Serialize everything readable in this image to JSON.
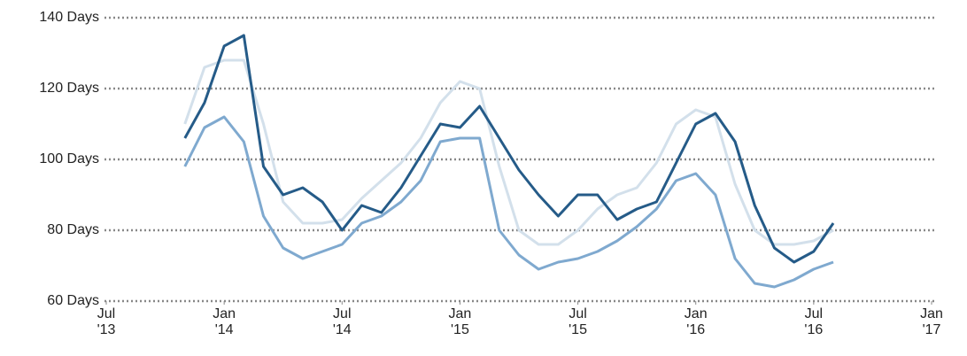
{
  "chart_data": {
    "type": "line",
    "x": [
      "2013-11",
      "2013-12",
      "2014-01",
      "2014-02",
      "2014-03",
      "2014-04",
      "2014-05",
      "2014-06",
      "2014-07",
      "2014-08",
      "2014-09",
      "2014-10",
      "2014-11",
      "2014-12",
      "2015-01",
      "2015-02",
      "2015-03",
      "2015-04",
      "2015-05",
      "2015-06",
      "2015-07",
      "2015-08",
      "2015-09",
      "2015-10",
      "2015-11",
      "2015-12",
      "2016-01",
      "2016-02",
      "2016-03",
      "2016-04",
      "2016-05",
      "2016-06",
      "2016-07",
      "2016-08"
    ],
    "series": [
      {
        "color": "#d3e0eb",
        "values": [
          110,
          126,
          128,
          128,
          110,
          88,
          82,
          82,
          83,
          89,
          94,
          99,
          106,
          116,
          122,
          120,
          98,
          80,
          76,
          76,
          80,
          86,
          90,
          92,
          99,
          110,
          114,
          112,
          93,
          80,
          76,
          76,
          77,
          80
        ]
      },
      {
        "color": "#7fa9cf",
        "values": [
          98,
          109,
          112,
          105,
          84,
          75,
          72,
          74,
          76,
          82,
          84,
          88,
          94,
          105,
          106,
          106,
          80,
          73,
          69,
          71,
          72,
          74,
          77,
          81,
          86,
          94,
          96,
          90,
          72,
          65,
          64,
          66,
          69,
          71
        ]
      },
      {
        "color": "#255b88",
        "values": [
          106,
          116,
          132,
          135,
          98,
          90,
          92,
          88,
          80,
          87,
          85,
          92,
          101,
          110,
          109,
          115,
          106,
          97,
          90,
          84,
          90,
          90,
          83,
          86,
          88,
          99,
          110,
          113,
          105,
          87,
          75,
          71,
          74,
          82
        ]
      }
    ],
    "xlim": [
      "2013-07",
      "2017-01"
    ],
    "xticks": [
      {
        "value": "2013-07",
        "label": "Jul\n'13"
      },
      {
        "value": "2014-01",
        "label": "Jan\n'14"
      },
      {
        "value": "2014-07",
        "label": "Jul\n'14"
      },
      {
        "value": "2015-01",
        "label": "Jan\n'15"
      },
      {
        "value": "2015-07",
        "label": "Jul\n'15"
      },
      {
        "value": "2016-01",
        "label": "Jan\n'16"
      },
      {
        "value": "2016-07",
        "label": "Jul\n'16"
      },
      {
        "value": "2017-01",
        "label": "Jan\n'17"
      }
    ],
    "ylim": [
      60,
      140
    ],
    "yticks": [
      {
        "value": 60,
        "label": "60 Days"
      },
      {
        "value": 80,
        "label": "80 Days"
      },
      {
        "value": 100,
        "label": "100 Days"
      },
      {
        "value": 120,
        "label": "120 Days"
      },
      {
        "value": 140,
        "label": "140 Days"
      }
    ],
    "grid": true
  }
}
